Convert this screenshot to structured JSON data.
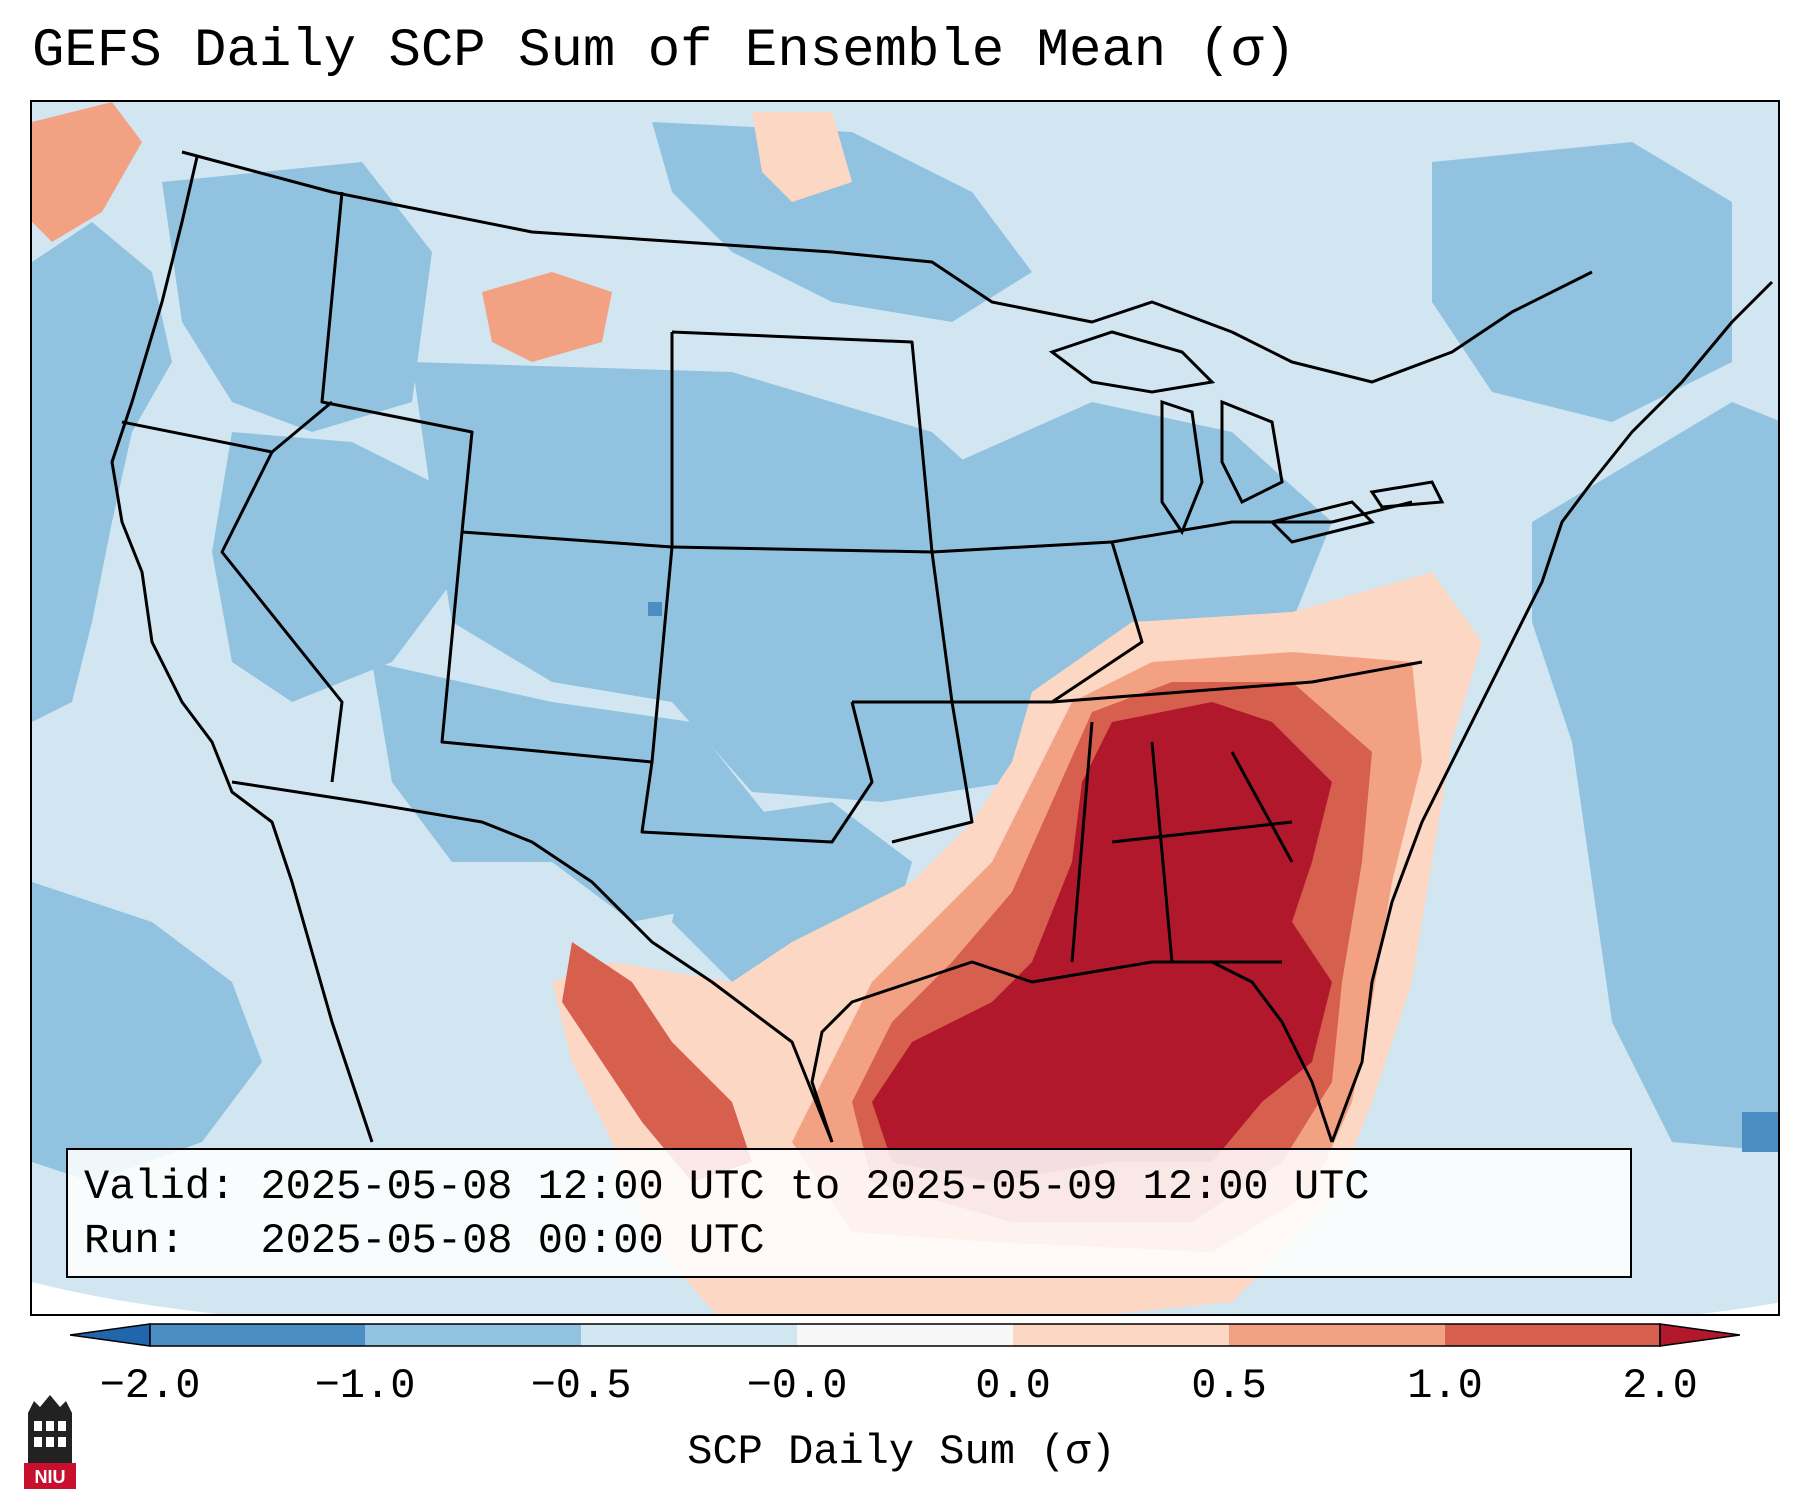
{
  "title": "GEFS Daily SCP Sum of Ensemble Mean (σ)",
  "info": {
    "valid_label": "Valid:",
    "valid_value": "2025-05-08 12:00 UTC to 2025-05-09 12:00 UTC",
    "run_label": "Run:",
    "run_value": "2025-05-08 00:00 UTC"
  },
  "colorbar": {
    "label": "SCP Daily Sum (σ)",
    "ticks": [
      "−2.0",
      "−1.0",
      "−0.5",
      "−0.0",
      "0.0",
      "0.5",
      "1.0",
      "2.0"
    ],
    "colors": [
      "#4b8ec4",
      "#91c3e0",
      "#d2e6f2",
      "#f7f7f7",
      "#fcd8c4",
      "#f2a283",
      "#d6604d",
      "#b2182b"
    ],
    "extend": "both"
  },
  "map": {
    "region": "contiguous-united-states",
    "palette": {
      "below_neg1": "#4b8ec4",
      "neg1_to_neg05": "#91c3e0",
      "neg05_to_0": "#d2e6f2",
      "zero_to_05": "#fcd8c4",
      "05_to_1": "#f2a283",
      "1_to_2": "#d6604d",
      "above_2": "#b2182b"
    }
  },
  "logo": {
    "text": "NIU",
    "icon": "niu-tower-logo-icon",
    "color": "#c8102e"
  }
}
